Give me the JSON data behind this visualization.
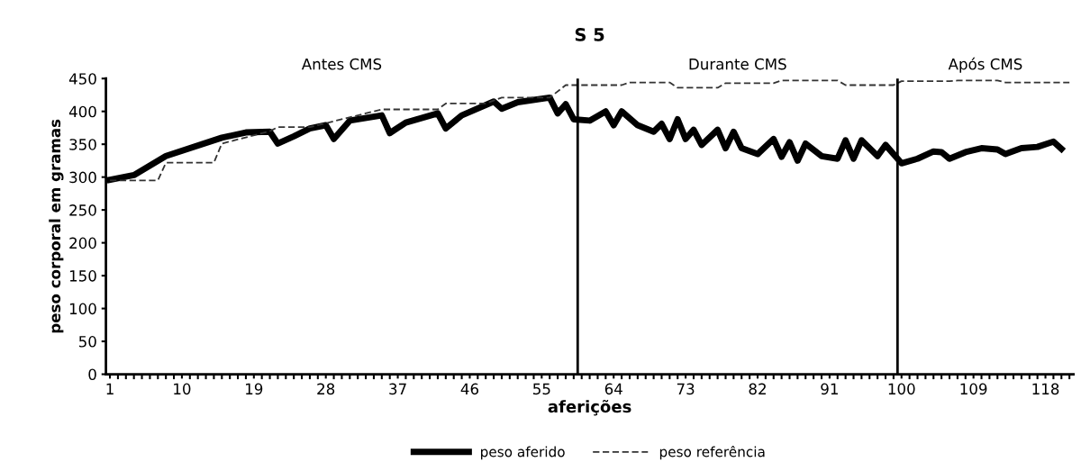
{
  "chart_data": {
    "type": "line",
    "title": "S 5",
    "xlabel": "aferições",
    "ylabel": "peso corporal em gramas",
    "xlim": [
      0.5,
      121.5
    ],
    "xticks": [
      1,
      10,
      19,
      28,
      37,
      46,
      55,
      64,
      73,
      82,
      91,
      100,
      109,
      118
    ],
    "ylim": [
      0,
      450
    ],
    "yticks": [
      0,
      50,
      100,
      150,
      200,
      250,
      300,
      350,
      400,
      450
    ],
    "grid": false,
    "legend": "bottom",
    "marker": "none",
    "series": [
      {
        "name": "peso aferido",
        "color": "#000000",
        "line_style": "solid",
        "x": [
          1,
          4,
          8,
          15,
          18,
          21,
          22,
          24,
          26,
          28,
          29,
          31,
          35,
          36,
          38,
          42,
          43,
          45,
          49,
          50,
          52,
          56,
          57,
          58,
          59,
          61,
          63,
          64,
          65,
          67,
          69,
          70,
          71,
          72,
          73,
          74,
          75,
          77,
          78,
          79,
          80,
          82,
          84,
          85,
          86,
          87,
          88,
          90,
          92,
          93,
          94,
          95,
          97,
          98,
          100,
          102,
          104,
          105,
          106,
          108,
          110,
          112,
          113,
          115,
          117,
          119,
          120
        ],
        "values": [
          296,
          303,
          332,
          360,
          368,
          369,
          351,
          362,
          374,
          379,
          358,
          386,
          394,
          367,
          383,
          397,
          374,
          394,
          415,
          404,
          414,
          421,
          397,
          411,
          388,
          386,
          400,
          379,
          400,
          379,
          369,
          381,
          358,
          388,
          358,
          372,
          349,
          372,
          344,
          369,
          344,
          335,
          358,
          331,
          353,
          325,
          351,
          332,
          328,
          356,
          328,
          356,
          332,
          349,
          321,
          328,
          339,
          338,
          328,
          338,
          344,
          342,
          335,
          344,
          346,
          354,
          343
        ]
      },
      {
        "name": "peso referência",
        "color": "#333333",
        "line_style": "dashed",
        "x": [
          1,
          7,
          8,
          14,
          15,
          21,
          22,
          26,
          35,
          42,
          43,
          48,
          50,
          56,
          58,
          65,
          66,
          71,
          72,
          77,
          78,
          84,
          85,
          92,
          93,
          99,
          100,
          106,
          107,
          112,
          113,
          121
        ],
        "values": [
          295,
          295,
          322,
          322,
          351,
          370,
          376,
          376,
          403,
          403,
          412,
          412,
          421,
          421,
          440,
          440,
          444,
          444,
          436,
          436,
          443,
          443,
          447,
          447,
          440,
          440,
          446,
          446,
          447,
          447,
          444,
          444
        ]
      }
    ],
    "ref_lines": [
      {
        "axis": "x",
        "value": 59.5,
        "color": "#000000"
      },
      {
        "axis": "x",
        "value": 99.5,
        "color": "#000000"
      }
    ],
    "annotations": [
      "Antes CMS",
      "Durante CMS",
      "Após CMS"
    ]
  }
}
